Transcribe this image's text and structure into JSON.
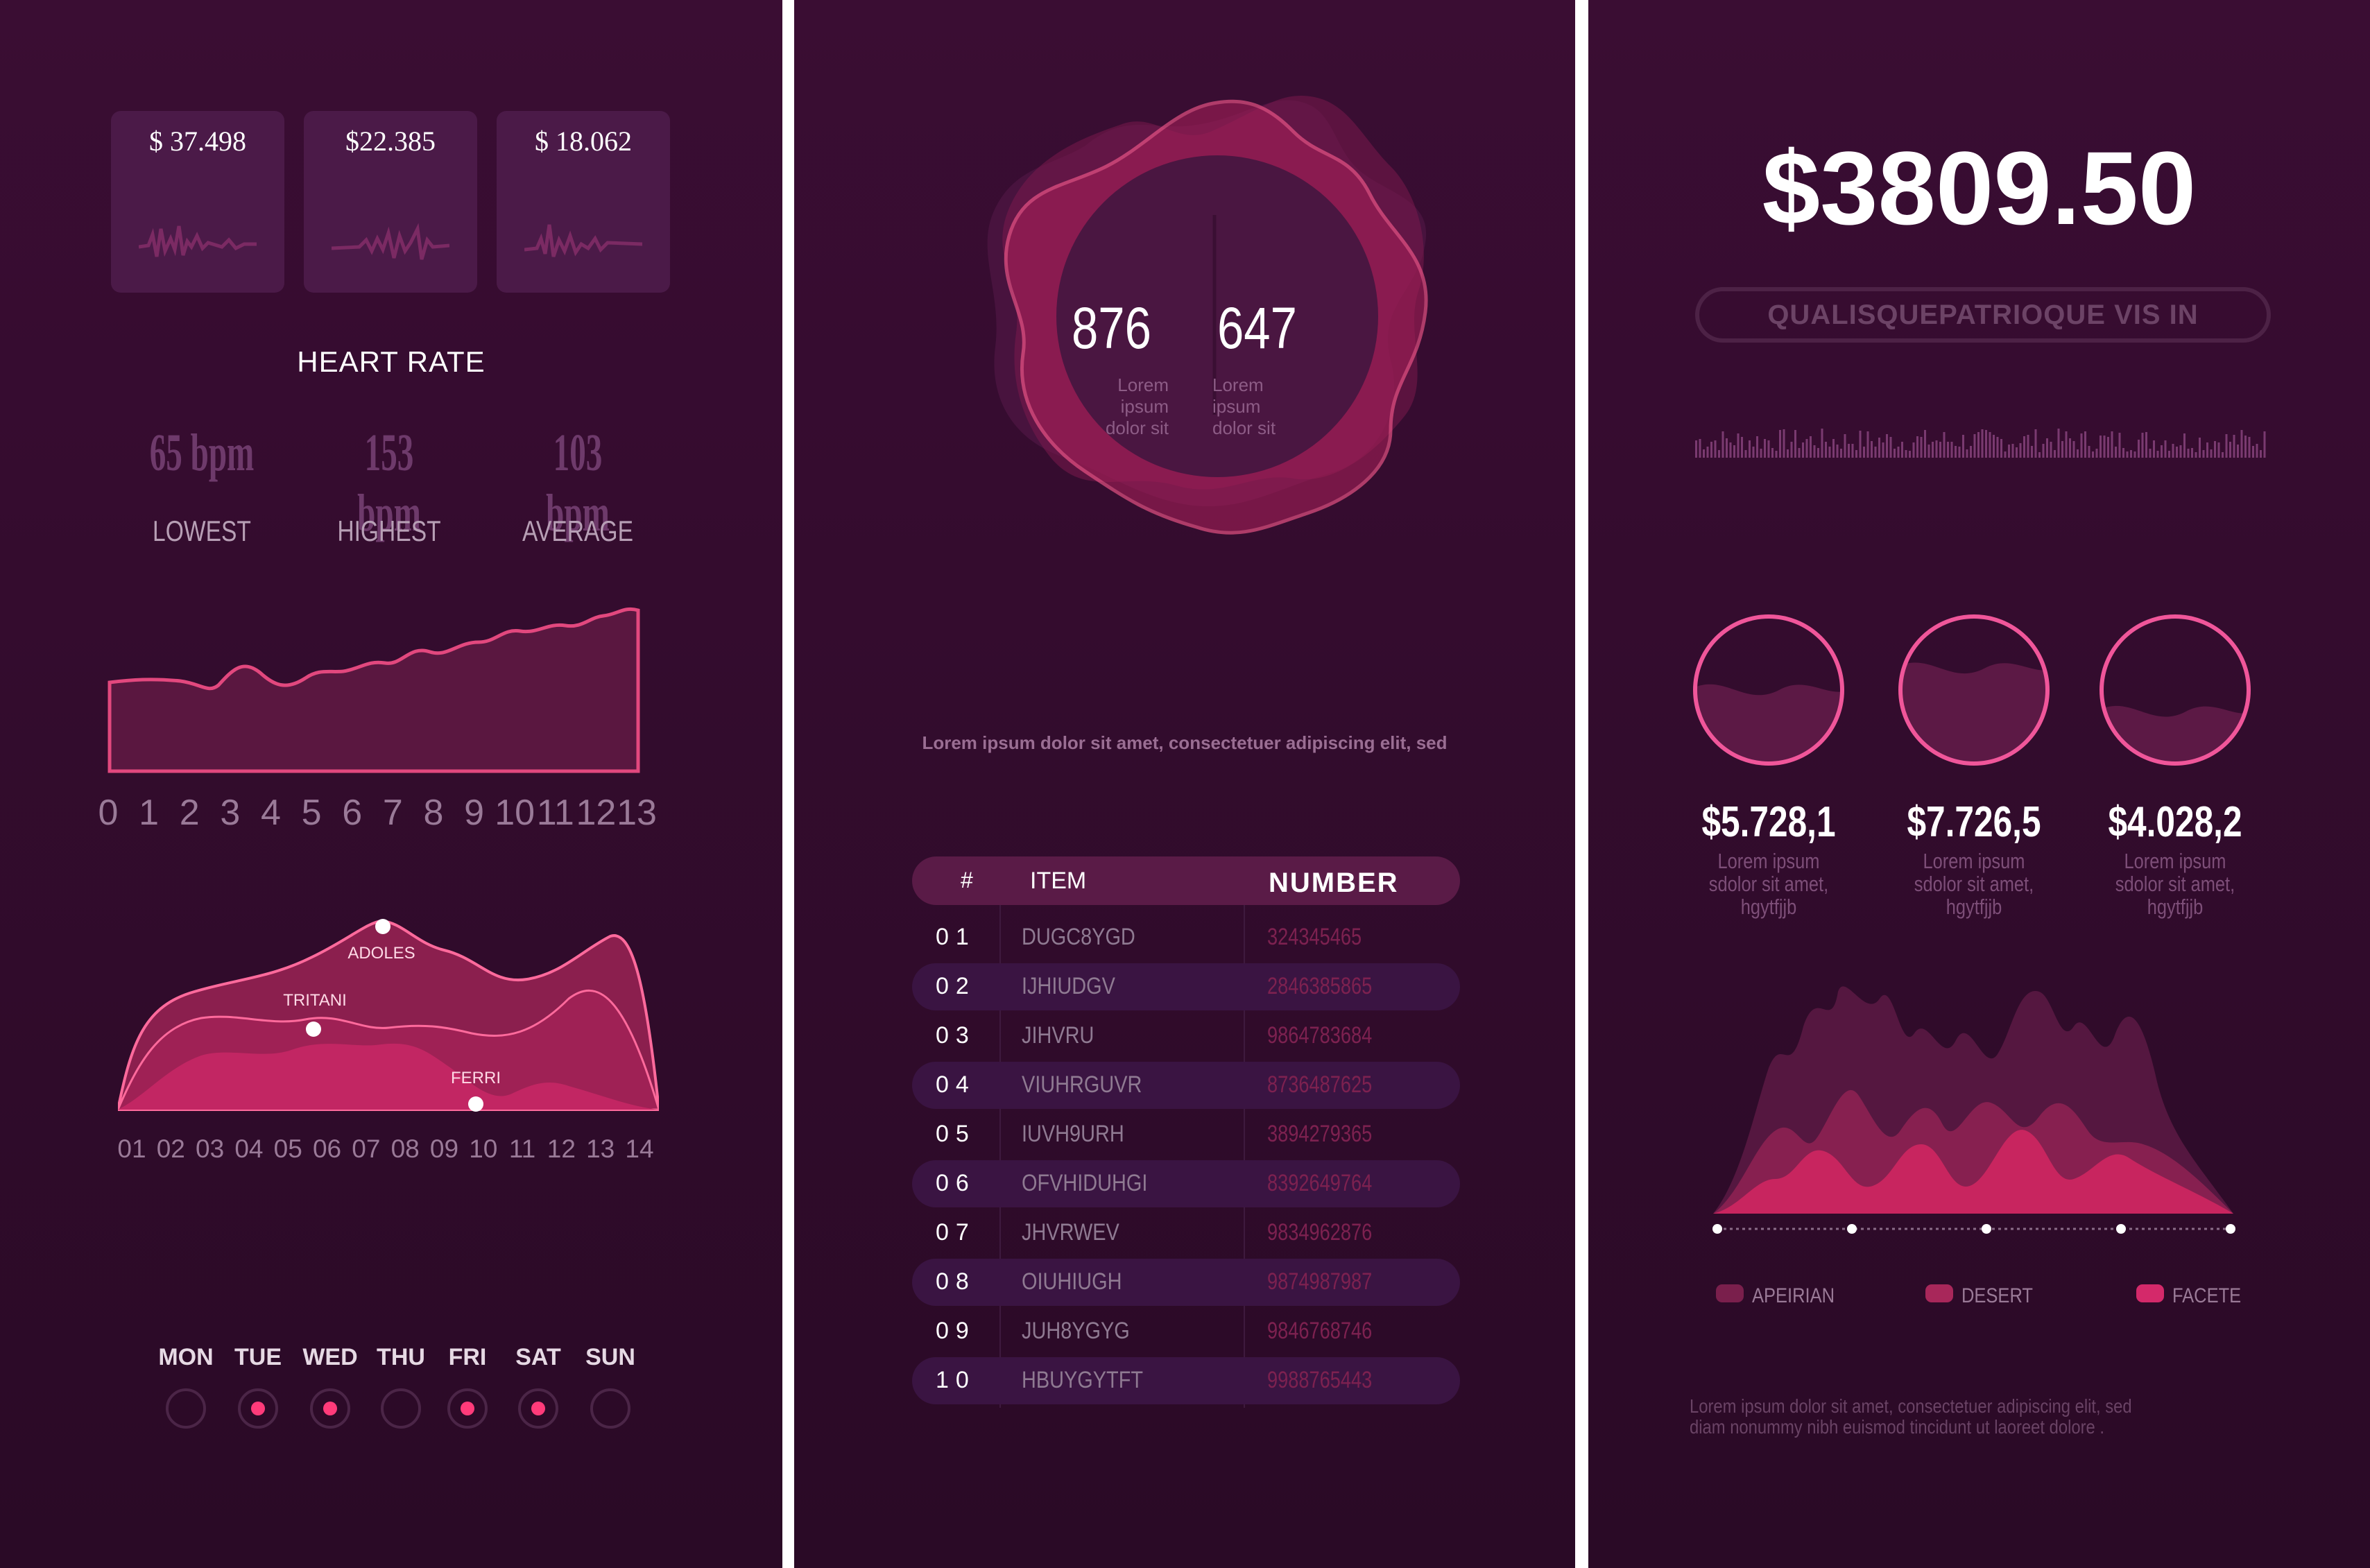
{
  "colors": {
    "bg": "#2f0b2b",
    "accent": "#ff3b7a",
    "area_dark": "#5d1540",
    "area_mid": "#9a2656",
    "area_light": "#c92a61"
  },
  "left": {
    "cards": [
      {
        "value": "$ 37.498",
        "icon": "waveform-icon"
      },
      {
        "value": "$22.385",
        "icon": "waveform-icon"
      },
      {
        "value": "$ 18.062",
        "icon": "waveform-icon"
      }
    ],
    "heart_title": "HEART RATE",
    "stats": [
      {
        "value": "65 bpm",
        "label": "LOWEST"
      },
      {
        "value": "153 bpm",
        "label": "HIGHEST"
      },
      {
        "value": "103 bpm",
        "label": "AVERAGE"
      }
    ],
    "area_axis": [
      "0",
      "1",
      "2",
      "3",
      "4",
      "5",
      "6",
      "7",
      "8",
      "9",
      "10",
      "11",
      "12",
      "13"
    ],
    "wave_axis": [
      "01",
      "02",
      "03",
      "04",
      "05",
      "06",
      "07",
      "08",
      "09",
      "10",
      "11",
      "12",
      "13",
      "14"
    ],
    "wave_labels": [
      "ADOLES",
      "TRITANI",
      "FERRI"
    ],
    "days": [
      {
        "label": "MON",
        "active": false
      },
      {
        "label": "TUE",
        "active": true
      },
      {
        "label": "WED",
        "active": true
      },
      {
        "label": "THU",
        "active": false
      },
      {
        "label": "FRI",
        "active": true
      },
      {
        "label": "SAT",
        "active": true
      },
      {
        "label": "SUN",
        "active": false
      }
    ]
  },
  "middle": {
    "stat_a": "876",
    "stat_b": "647",
    "stat_caption": [
      "Lorem",
      "ipsum",
      "dolor sit"
    ],
    "sentence": "Lorem ipsum dolor sit amet, consectetuer adipiscing elit, sed",
    "table": {
      "headers": {
        "index": "#",
        "item": "ITEM",
        "number": "NUMBER"
      },
      "rows": [
        {
          "idx": "01",
          "item": "DUGC8YGD",
          "num": "324345465"
        },
        {
          "idx": "02",
          "item": "IJHIUDGV",
          "num": "2846385865"
        },
        {
          "idx": "03",
          "item": "JIHVRU",
          "num": "9864783684"
        },
        {
          "idx": "04",
          "item": "VIUHRGUVR",
          "num": "8736487625"
        },
        {
          "idx": "05",
          "item": "IUVH9URH",
          "num": "3894279365"
        },
        {
          "idx": "06",
          "item": "OFVHIDUHGI",
          "num": "8392649764"
        },
        {
          "idx": "07",
          "item": "JHVRWEV",
          "num": "9834962876"
        },
        {
          "idx": "08",
          "item": "OIUHIUGH",
          "num": "9874987987"
        },
        {
          "idx": "09",
          "item": "JUH8YGYG",
          "num": "9846768746"
        },
        {
          "idx": "10",
          "item": "HBUYGYTFT",
          "num": "9988765443"
        }
      ]
    }
  },
  "right": {
    "amount": "$3809.50",
    "pill": "QUALISQUEPATRIOQUE VIS IN",
    "circles": [
      {
        "value": "$5.728,1",
        "caption": [
          "Lorem ipsum",
          "sdolor sit amet,",
          "hgytfjjb"
        ],
        "fill": 0.5
      },
      {
        "value": "$7.726,5",
        "caption": [
          "Lorem ipsum",
          "sdolor sit amet,",
          "hgytfjjb"
        ],
        "fill": 0.65
      },
      {
        "value": "$4.028,2",
        "caption": [
          "Lorem ipsum",
          "sdolor sit amet,",
          "hgytfjjb"
        ],
        "fill": 0.35
      }
    ],
    "legend": [
      {
        "label": "APEIRIAN",
        "color": "#7a1f4c"
      },
      {
        "label": "DESERT",
        "color": "#a8275a"
      },
      {
        "label": "FACETE",
        "color": "#d4296a"
      }
    ],
    "footer": [
      "Lorem ipsum dolor sit amet, consectetuer adipiscing elit, sed",
      "diam nonummy nibh euismod tincidunt ut laoreet dolore ."
    ]
  }
}
